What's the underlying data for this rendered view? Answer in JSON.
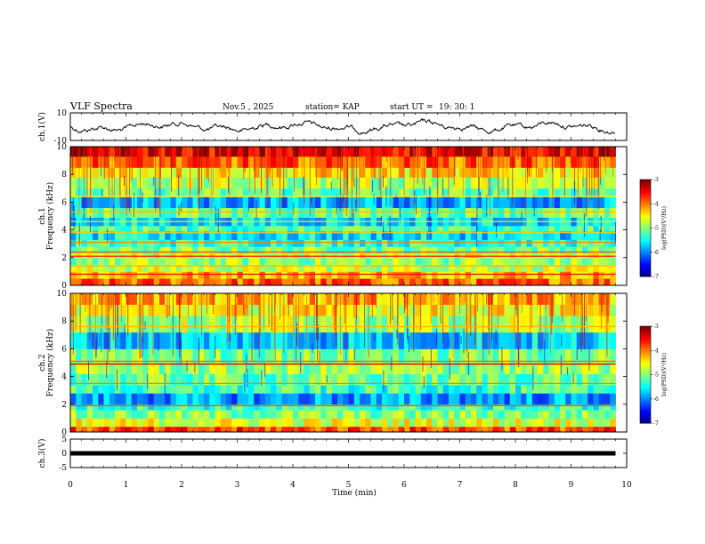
{
  "header": {
    "title": "VLF Spectra",
    "date": "Nov.5 , 2025",
    "station": "station= KAP",
    "start": "start UT =",
    "start_time": "19: 30: 1"
  },
  "chart_data": [
    {
      "type": "line",
      "name": "ch1-waveform",
      "ylabel": "ch.1(V)",
      "ylim": [
        -10,
        10
      ],
      "yticks": [
        "10",
        "-10"
      ],
      "xlim": [
        0,
        10
      ],
      "x_extent": [
        0,
        9.8
      ]
    },
    {
      "type": "heatmap",
      "name": "ch1-spectrogram",
      "ylabel": "ch.1\nFrequency (kHz)",
      "ylim": [
        0,
        10
      ],
      "yticks": [
        "0",
        "2",
        "4",
        "6",
        "8",
        "10"
      ],
      "xlim": [
        0,
        10
      ],
      "x_extent": [
        0,
        9.8
      ],
      "colorbar": {
        "label": "log(PSD)(V²/Hz)",
        "range": [
          -7,
          -3
        ],
        "ticks": [
          "-3",
          "-4",
          "-5",
          "-6",
          "-7"
        ]
      },
      "bands": [
        {
          "from": 0.0,
          "to": 0.5,
          "value": -3.9
        },
        {
          "from": 0.5,
          "to": 1.0,
          "value": -4.2
        },
        {
          "from": 1.0,
          "to": 1.5,
          "value": -4.7
        },
        {
          "from": 1.5,
          "to": 2.0,
          "value": -4.9
        },
        {
          "from": 2.0,
          "to": 2.3,
          "value": -4.6
        },
        {
          "from": 2.3,
          "to": 2.8,
          "value": -5.0
        },
        {
          "from": 2.8,
          "to": 3.3,
          "value": -5.3
        },
        {
          "from": 3.3,
          "to": 3.9,
          "value": -5.6
        },
        {
          "from": 3.9,
          "to": 4.3,
          "value": -5.2
        },
        {
          "from": 4.3,
          "to": 4.9,
          "value": -5.6
        },
        {
          "from": 4.9,
          "to": 5.6,
          "value": -5.1
        },
        {
          "from": 5.6,
          "to": 6.4,
          "value": -5.8
        },
        {
          "from": 6.4,
          "to": 7.0,
          "value": -5.1
        },
        {
          "from": 7.0,
          "to": 7.8,
          "value": -4.8
        },
        {
          "from": 7.8,
          "to": 8.5,
          "value": -4.4
        },
        {
          "from": 8.5,
          "to": 9.3,
          "value": -3.9
        },
        {
          "from": 9.3,
          "to": 10.0,
          "value": -3.4
        }
      ],
      "lines": [
        {
          "freq": 0.8,
          "value": -3.5
        },
        {
          "freq": 1.4,
          "value": -4.2
        },
        {
          "freq": 2.1,
          "value": -3.6
        },
        {
          "freq": 2.4,
          "value": -3.8
        },
        {
          "freq": 3.1,
          "value": -4.0
        },
        {
          "freq": 3.8,
          "value": -4.3
        },
        {
          "freq": 4.6,
          "value": -4.4
        },
        {
          "freq": 5.3,
          "value": -4.2
        },
        {
          "freq": 6.4,
          "value": -4.5
        }
      ]
    },
    {
      "type": "heatmap",
      "name": "ch2-spectrogram",
      "ylabel": "ch.2\nFrequency (kHz)",
      "ylim": [
        0,
        10
      ],
      "yticks": [
        "0",
        "2",
        "4",
        "6",
        "8",
        "10"
      ],
      "xlim": [
        0,
        10
      ],
      "x_extent": [
        0,
        9.8
      ],
      "colorbar": {
        "label": "log(PSD)(V²/Hz)",
        "range": [
          -7,
          -3
        ],
        "ticks": [
          "-3",
          "-4",
          "-5",
          "-6",
          "-7"
        ]
      },
      "bands": [
        {
          "from": 0.0,
          "to": 0.4,
          "value": -3.8
        },
        {
          "from": 0.4,
          "to": 1.0,
          "value": -4.6
        },
        {
          "from": 1.0,
          "to": 1.6,
          "value": -5.0
        },
        {
          "from": 1.6,
          "to": 2.0,
          "value": -5.3
        },
        {
          "from": 2.0,
          "to": 2.8,
          "value": -5.9
        },
        {
          "from": 2.8,
          "to": 3.4,
          "value": -5.3
        },
        {
          "from": 3.4,
          "to": 4.2,
          "value": -5.1
        },
        {
          "from": 4.2,
          "to": 5.0,
          "value": -4.9
        },
        {
          "from": 5.0,
          "to": 6.0,
          "value": -5.0
        },
        {
          "from": 6.0,
          "to": 7.2,
          "value": -5.7
        },
        {
          "from": 7.2,
          "to": 8.4,
          "value": -4.8
        },
        {
          "from": 8.4,
          "to": 9.2,
          "value": -4.5
        },
        {
          "from": 9.2,
          "to": 10.0,
          "value": -4.2
        }
      ],
      "lines": [
        {
          "freq": 1.9,
          "value": -3.8
        },
        {
          "freq": 3.5,
          "value": -4.0
        },
        {
          "freq": 4.9,
          "value": -3.4
        },
        {
          "freq": 5.1,
          "value": -3.9
        },
        {
          "freq": 7.6,
          "value": -4.2
        }
      ]
    },
    {
      "type": "line",
      "name": "ch3-waveform",
      "ylabel": "ch.3(V)",
      "ylim": [
        -5,
        5
      ],
      "yticks": [
        "5",
        "0",
        "-5"
      ],
      "xlim": [
        0,
        10
      ],
      "x_extent": [
        0,
        9.8
      ],
      "level": 0
    }
  ],
  "x_axis": {
    "label": "Time (min)",
    "range": [
      0,
      10
    ],
    "ticks": [
      "0",
      "1",
      "2",
      "3",
      "4",
      "5",
      "6",
      "7",
      "8",
      "9",
      "10"
    ]
  }
}
